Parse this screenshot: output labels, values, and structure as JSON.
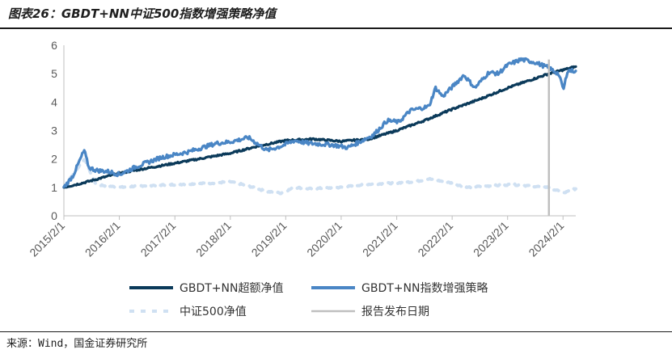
{
  "title": "图表26：GBDT+NN中证500指数增强策略净值",
  "source": "来源：Wind，国金证券研究所",
  "colors": {
    "excess": "#0b3a5a",
    "enhanced": "#4a86c5",
    "index": "#cfe0f2",
    "report": "#bfbfbf",
    "axis": "#bfbfbf",
    "text": "#595959"
  },
  "chart_data": {
    "type": "line",
    "title": "",
    "xlabel": "",
    "ylabel": "",
    "ylim": [
      0,
      6
    ],
    "yticks": [
      "0",
      "1",
      "2",
      "3",
      "4",
      "5",
      "6"
    ],
    "x_start": "2015-02-01",
    "x_end": "2024-04-25",
    "xtick_labels": [
      "2015/2/1",
      "2016/2/1",
      "2017/2/1",
      "2018/2/1",
      "2019/2/1",
      "2020/2/1",
      "2021/2/1",
      "2022/2/1",
      "2023/2/1",
      "2024/2/1"
    ],
    "legend_position": "bottom",
    "report_date": "2023-10-31",
    "series": [
      {
        "name": "GBDT+NN超额净值",
        "style": "solid",
        "x": [
          "2015-02-01",
          "2015-06-01",
          "2016-02-01",
          "2017-02-01",
          "2018-02-01",
          "2018-08-01",
          "2019-02-01",
          "2019-08-01",
          "2020-02-01",
          "2020-08-01",
          "2021-02-01",
          "2021-08-01",
          "2022-02-01",
          "2022-08-01",
          "2023-02-01",
          "2023-10-31",
          "2024-04-25"
        ],
        "values": [
          1.0,
          1.15,
          1.5,
          1.85,
          2.2,
          2.45,
          2.65,
          2.7,
          2.62,
          2.7,
          3.0,
          3.35,
          3.75,
          4.1,
          4.5,
          5.0,
          5.25
        ]
      },
      {
        "name": "GBDT+NN指数增强策略",
        "style": "solid",
        "x": [
          "2015-02-01",
          "2015-04-01",
          "2015-06-15",
          "2015-07-15",
          "2015-09-01",
          "2015-12-01",
          "2016-02-01",
          "2016-06-01",
          "2016-11-01",
          "2017-05-01",
          "2017-11-01",
          "2018-02-01",
          "2018-06-01",
          "2018-10-01",
          "2019-01-01",
          "2019-04-01",
          "2019-07-01",
          "2019-12-01",
          "2020-03-15",
          "2020-06-01",
          "2020-09-01",
          "2020-12-01",
          "2021-02-15",
          "2021-05-01",
          "2021-09-01",
          "2021-10-15",
          "2021-12-01",
          "2022-04-20",
          "2022-07-01",
          "2022-10-01",
          "2022-12-01",
          "2023-02-01",
          "2023-05-01",
          "2023-08-01",
          "2023-10-31",
          "2024-01-01",
          "2024-02-05",
          "2024-03-01",
          "2024-04-25"
        ],
        "values": [
          1.0,
          1.4,
          2.3,
          1.7,
          1.6,
          1.55,
          1.45,
          1.75,
          2.05,
          2.25,
          2.55,
          2.6,
          2.75,
          2.3,
          2.45,
          2.65,
          2.55,
          2.5,
          2.4,
          2.6,
          2.85,
          3.35,
          3.3,
          3.7,
          3.85,
          4.5,
          4.2,
          4.95,
          4.5,
          5.05,
          5.0,
          5.3,
          5.5,
          5.4,
          5.2,
          5.0,
          4.45,
          5.1,
          5.1
        ]
      },
      {
        "name": "中证500净值",
        "style": "dashed",
        "x": [
          "2015-02-01",
          "2015-06-15",
          "2015-09-01",
          "2016-02-01",
          "2016-06-01",
          "2017-02-01",
          "2017-10-01",
          "2018-02-01",
          "2018-06-01",
          "2018-10-01",
          "2019-01-01",
          "2019-04-01",
          "2019-07-01",
          "2020-02-01",
          "2020-07-01",
          "2021-01-01",
          "2021-06-01",
          "2021-09-01",
          "2022-02-01",
          "2022-05-01",
          "2022-10-01",
          "2023-03-01",
          "2023-10-31",
          "2024-02-05",
          "2024-04-25"
        ],
        "values": [
          1.0,
          2.0,
          1.1,
          1.0,
          1.05,
          1.1,
          1.15,
          1.2,
          1.05,
          0.85,
          0.8,
          1.0,
          0.95,
          1.0,
          1.1,
          1.15,
          1.2,
          1.3,
          1.15,
          1.0,
          1.05,
          1.1,
          1.0,
          0.8,
          0.95
        ]
      },
      {
        "name": "报告发布日期",
        "style": "vline",
        "x": [
          "2023-10-31"
        ],
        "values": [
          6
        ]
      }
    ]
  }
}
